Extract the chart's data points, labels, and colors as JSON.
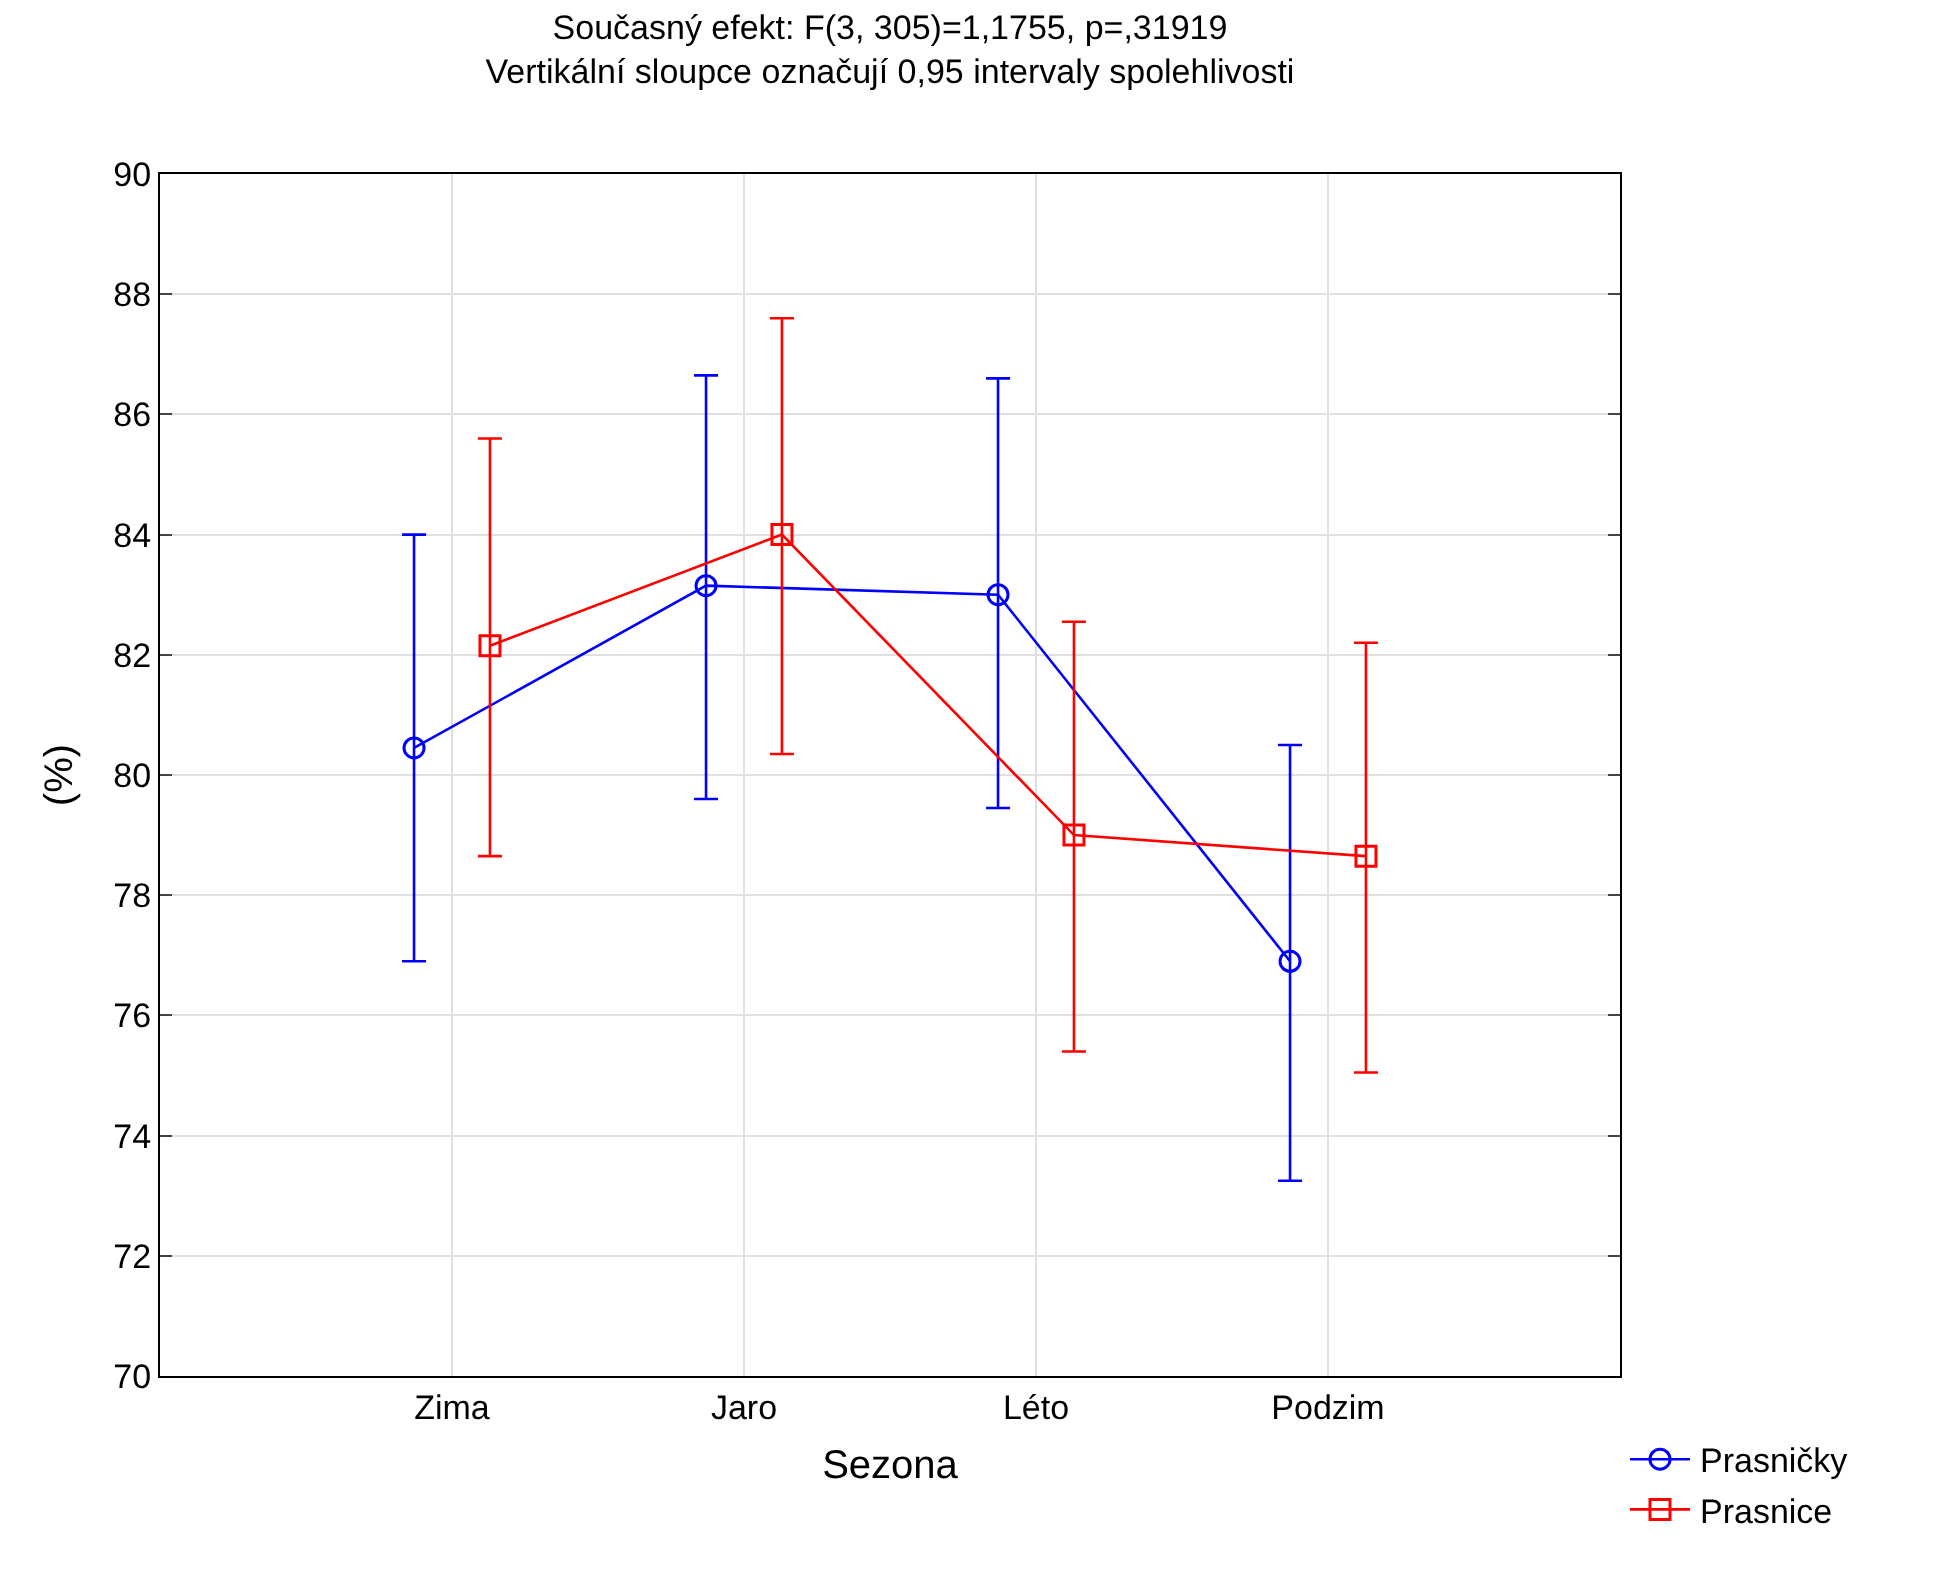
{
  "chart_data": {
    "type": "line",
    "title": "Současný efekt: F(3, 305)=1,1755, p=,31919",
    "subtitle": "Vertikální sloupce označují 0,95 intervaly spolehlivosti",
    "xlabel": "Sezona",
    "ylabel": "(%)",
    "categories": [
      "Zima",
      "Jaro",
      "Léto",
      "Podzim"
    ],
    "series": [
      {
        "name": "Prasničky",
        "color": "#0000ff",
        "marker": "circle",
        "values": [
          80.45,
          83.15,
          83.0,
          76.9
        ],
        "errors": [
          [
            76.9,
            84.0
          ],
          [
            79.6,
            86.65
          ],
          [
            79.45,
            86.6
          ],
          [
            73.25,
            80.5
          ]
        ]
      },
      {
        "name": "Prasnice",
        "color": "#ff0000",
        "marker": "square",
        "values": [
          82.15,
          84.0,
          79.0,
          78.65
        ],
        "errors": [
          [
            78.65,
            85.6
          ],
          [
            80.35,
            87.6
          ],
          [
            75.4,
            82.55
          ],
          [
            75.05,
            82.2
          ]
        ]
      }
    ],
    "ylim": [
      70,
      90
    ],
    "yticks": [
      70,
      72,
      74,
      76,
      78,
      80,
      82,
      84,
      86,
      88,
      90
    ],
    "grid": true,
    "legend": "bottom right",
    "line_style": "solid"
  }
}
